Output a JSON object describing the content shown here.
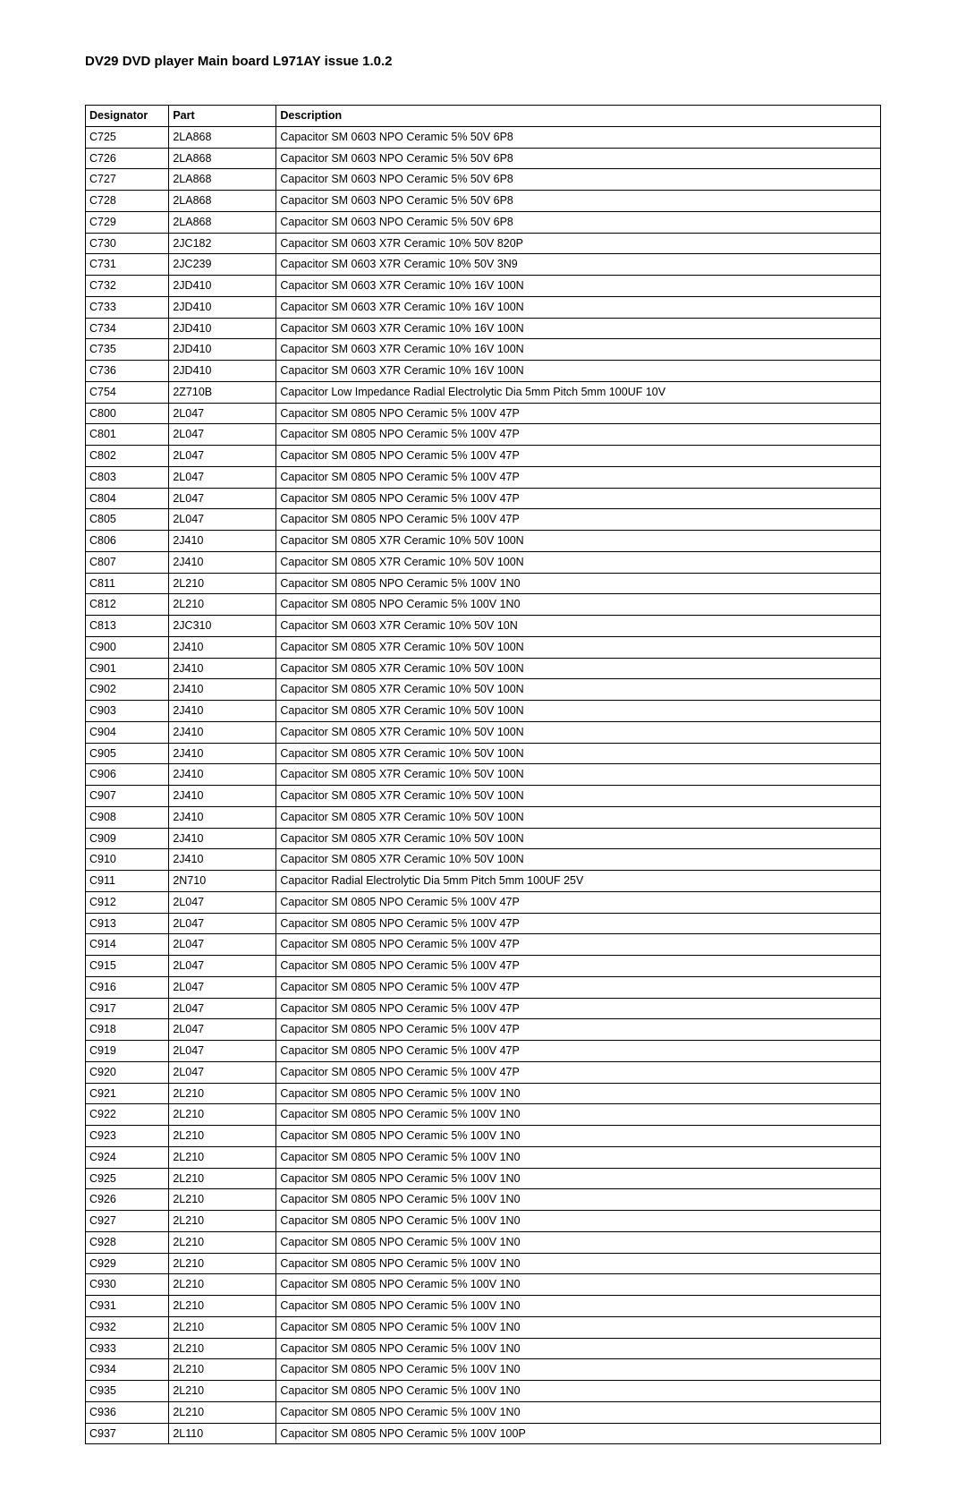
{
  "title": "DV29 DVD player Main board L971AY issue 1.0.2",
  "columns": [
    "Designator",
    "Part",
    "Description"
  ],
  "rows": [
    [
      "C725",
      "2LA868",
      "Capacitor SM 0603 NPO Ceramic 5% 50V 6P8"
    ],
    [
      "C726",
      "2LA868",
      "Capacitor SM 0603 NPO Ceramic 5% 50V 6P8"
    ],
    [
      "C727",
      "2LA868",
      "Capacitor SM 0603 NPO Ceramic 5% 50V 6P8"
    ],
    [
      "C728",
      "2LA868",
      "Capacitor SM 0603 NPO Ceramic 5% 50V 6P8"
    ],
    [
      "C729",
      "2LA868",
      "Capacitor SM 0603 NPO Ceramic 5% 50V 6P8"
    ],
    [
      "C730",
      "2JC182",
      "Capacitor SM 0603 X7R Ceramic 10% 50V 820P"
    ],
    [
      "C731",
      "2JC239",
      "Capacitor SM 0603 X7R Ceramic 10% 50V 3N9"
    ],
    [
      "C732",
      "2JD410",
      "Capacitor SM 0603 X7R Ceramic 10% 16V 100N"
    ],
    [
      "C733",
      "2JD410",
      "Capacitor SM 0603 X7R Ceramic 10% 16V 100N"
    ],
    [
      "C734",
      "2JD410",
      "Capacitor SM 0603 X7R Ceramic 10% 16V 100N"
    ],
    [
      "C735",
      "2JD410",
      "Capacitor SM 0603 X7R Ceramic 10% 16V 100N"
    ],
    [
      "C736",
      "2JD410",
      "Capacitor SM 0603 X7R Ceramic 10% 16V 100N"
    ],
    [
      "C754",
      "2Z710B",
      "Capacitor Low Impedance Radial Electrolytic Dia 5mm Pitch 5mm 100UF 10V"
    ],
    [
      "C800",
      "2L047",
      "Capacitor SM 0805 NPO Ceramic 5% 100V 47P"
    ],
    [
      "C801",
      "2L047",
      "Capacitor SM 0805 NPO Ceramic 5% 100V 47P"
    ],
    [
      "C802",
      "2L047",
      "Capacitor SM 0805 NPO Ceramic 5% 100V 47P"
    ],
    [
      "C803",
      "2L047",
      "Capacitor SM 0805 NPO Ceramic 5% 100V 47P"
    ],
    [
      "C804",
      "2L047",
      "Capacitor SM 0805 NPO Ceramic 5% 100V 47P"
    ],
    [
      "C805",
      "2L047",
      "Capacitor SM 0805 NPO Ceramic 5% 100V 47P"
    ],
    [
      "C806",
      "2J410",
      "Capacitor SM 0805 X7R Ceramic 10% 50V 100N"
    ],
    [
      "C807",
      "2J410",
      "Capacitor SM 0805 X7R Ceramic 10% 50V 100N"
    ],
    [
      "C811",
      "2L210",
      "Capacitor SM 0805 NPO Ceramic 5% 100V 1N0"
    ],
    [
      "C812",
      "2L210",
      "Capacitor SM 0805 NPO Ceramic 5% 100V 1N0"
    ],
    [
      "C813",
      "2JC310",
      "Capacitor SM 0603 X7R Ceramic 10% 50V 10N"
    ],
    [
      "C900",
      "2J410",
      "Capacitor SM 0805 X7R Ceramic 10% 50V 100N"
    ],
    [
      "C901",
      "2J410",
      "Capacitor SM 0805 X7R Ceramic 10% 50V 100N"
    ],
    [
      "C902",
      "2J410",
      "Capacitor SM 0805 X7R Ceramic 10% 50V 100N"
    ],
    [
      "C903",
      "2J410",
      "Capacitor SM 0805 X7R Ceramic 10% 50V 100N"
    ],
    [
      "C904",
      "2J410",
      "Capacitor SM 0805 X7R Ceramic 10% 50V 100N"
    ],
    [
      "C905",
      "2J410",
      "Capacitor SM 0805 X7R Ceramic 10% 50V 100N"
    ],
    [
      "C906",
      "2J410",
      "Capacitor SM 0805 X7R Ceramic 10% 50V 100N"
    ],
    [
      "C907",
      "2J410",
      "Capacitor SM 0805 X7R Ceramic 10% 50V 100N"
    ],
    [
      "C908",
      "2J410",
      "Capacitor SM 0805 X7R Ceramic 10% 50V 100N"
    ],
    [
      "C909",
      "2J410",
      "Capacitor SM 0805 X7R Ceramic 10% 50V 100N"
    ],
    [
      "C910",
      "2J410",
      "Capacitor SM 0805 X7R Ceramic 10% 50V 100N"
    ],
    [
      "C911",
      "2N710",
      "Capacitor Radial Electrolytic Dia 5mm Pitch 5mm 100UF 25V"
    ],
    [
      "C912",
      "2L047",
      "Capacitor SM 0805 NPO Ceramic 5% 100V 47P"
    ],
    [
      "C913",
      "2L047",
      "Capacitor SM 0805 NPO Ceramic 5% 100V 47P"
    ],
    [
      "C914",
      "2L047",
      "Capacitor SM 0805 NPO Ceramic 5% 100V 47P"
    ],
    [
      "C915",
      "2L047",
      "Capacitor SM 0805 NPO Ceramic 5% 100V 47P"
    ],
    [
      "C916",
      "2L047",
      "Capacitor SM 0805 NPO Ceramic 5% 100V 47P"
    ],
    [
      "C917",
      "2L047",
      "Capacitor SM 0805 NPO Ceramic 5% 100V 47P"
    ],
    [
      "C918",
      "2L047",
      "Capacitor SM 0805 NPO Ceramic 5% 100V 47P"
    ],
    [
      "C919",
      "2L047",
      "Capacitor SM 0805 NPO Ceramic 5% 100V 47P"
    ],
    [
      "C920",
      "2L047",
      "Capacitor SM 0805 NPO Ceramic 5% 100V 47P"
    ],
    [
      "C921",
      "2L210",
      "Capacitor SM 0805 NPO Ceramic 5% 100V 1N0"
    ],
    [
      "C922",
      "2L210",
      "Capacitor SM 0805 NPO Ceramic 5% 100V 1N0"
    ],
    [
      "C923",
      "2L210",
      "Capacitor SM 0805 NPO Ceramic 5% 100V 1N0"
    ],
    [
      "C924",
      "2L210",
      "Capacitor SM 0805 NPO Ceramic 5% 100V 1N0"
    ],
    [
      "C925",
      "2L210",
      "Capacitor SM 0805 NPO Ceramic 5% 100V 1N0"
    ],
    [
      "C926",
      "2L210",
      "Capacitor SM 0805 NPO Ceramic 5% 100V 1N0"
    ],
    [
      "C927",
      "2L210",
      "Capacitor SM 0805 NPO Ceramic 5% 100V 1N0"
    ],
    [
      "C928",
      "2L210",
      "Capacitor SM 0805 NPO Ceramic 5% 100V 1N0"
    ],
    [
      "C929",
      "2L210",
      "Capacitor SM 0805 NPO Ceramic 5% 100V 1N0"
    ],
    [
      "C930",
      "2L210",
      "Capacitor SM 0805 NPO Ceramic 5% 100V 1N0"
    ],
    [
      "C931",
      "2L210",
      "Capacitor SM 0805 NPO Ceramic 5% 100V 1N0"
    ],
    [
      "C932",
      "2L210",
      "Capacitor SM 0805 NPO Ceramic 5% 100V 1N0"
    ],
    [
      "C933",
      "2L210",
      "Capacitor SM 0805 NPO Ceramic 5% 100V 1N0"
    ],
    [
      "C934",
      "2L210",
      "Capacitor SM 0805 NPO Ceramic 5% 100V 1N0"
    ],
    [
      "C935",
      "2L210",
      "Capacitor SM 0805 NPO Ceramic 5% 100V 1N0"
    ],
    [
      "C936",
      "2L210",
      "Capacitor SM 0805 NPO Ceramic 5% 100V 1N0"
    ],
    [
      "C937",
      "2L110",
      "Capacitor SM 0805 NPO Ceramic 5% 100V 100P"
    ]
  ]
}
